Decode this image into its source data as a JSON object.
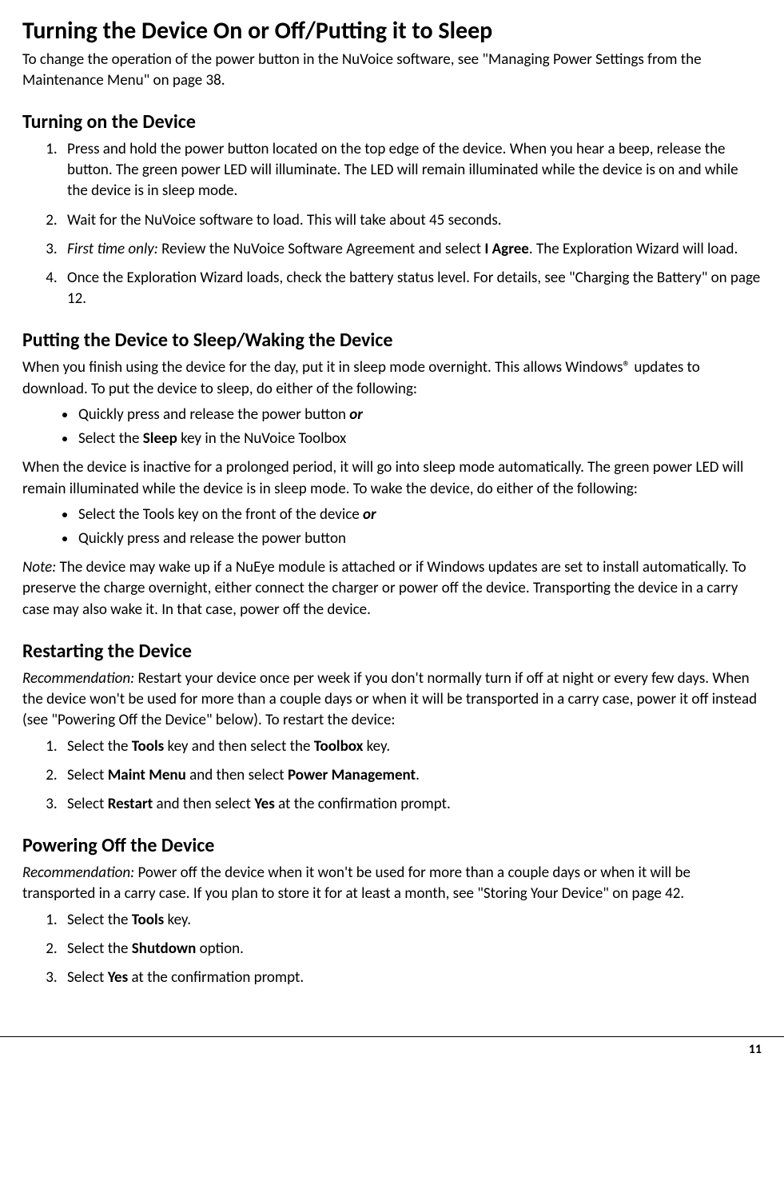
{
  "title": "Turning the Device On or Off/Putting it to Sleep",
  "intro": "To change the operation of the power button in the NuVoice software, see \"Managing Power Settings from the Maintenance Menu\" on page 38.",
  "s1": {
    "heading": "Turning on the Device",
    "li1": "Press and hold the power button located on the top edge of the device. When you hear a beep, release the button. The green power LED will illuminate. The LED will remain illuminated while the device is on and while the device is in sleep mode.",
    "li2": "Wait for the NuVoice software to load. This will take about 45 seconds.",
    "li3_a": "First time only:",
    "li3_b": " Review the NuVoice Software Agreement and select ",
    "li3_c": "I Agree",
    "li3_d": ". The Exploration Wizard will load.",
    "li4": "Once the Exploration Wizard loads, check the battery status level. For details, see \"Charging the Battery\" on page 12."
  },
  "s2": {
    "heading": "Putting the Device to Sleep/Waking the Device",
    "p1": "When you finish using the device for the day, put it in sleep mode overnight. This allows Windows® updates to download. To put the device to sleep, do either of the following:",
    "b1_a": "Quickly press and release the power button ",
    "b1_b": "or",
    "b2_a": "Select the ",
    "b2_b": "Sleep",
    "b2_c": " key in the NuVoice Toolbox",
    "p2": "When the device is inactive for a prolonged period, it will go into sleep mode automatically. The green power LED will remain illuminated while the device is in sleep mode. To wake the device, do either of the following:",
    "b3_a": "Select the Tools key on the front of the device ",
    "b3_b": "or",
    "b4": "Quickly press and release the power button",
    "note_a": "Note:",
    "note_b": " The device may wake up if a NuEye module is attached or if Windows updates are set to install automatically. To preserve the charge overnight, either connect the charger or power off the device. Transporting the device in a carry case may also wake it. In that case, power off the device."
  },
  "s3": {
    "heading": "Restarting the Device",
    "rec_a": "Recommendation:",
    "rec_b": " Restart your device once per week if you don't normally turn if off at night or every few days. When the device won't be used for more than a couple days or when it will be transported in a carry case, power it off instead (see \"Powering Off the Device\" below). To restart the device:",
    "li1_a": "Select the ",
    "li1_b": "Tools",
    "li1_c": " key and then select the ",
    "li1_d": "Toolbox",
    "li1_e": " key.",
    "li2_a": "Select ",
    "li2_b": "Maint Menu",
    "li2_c": " and then select ",
    "li2_d": "Power Management",
    "li2_e": ".",
    "li3_a": "Select ",
    "li3_b": "Restart",
    "li3_c": " and then select ",
    "li3_d": "Yes",
    "li3_e": " at the confirmation prompt."
  },
  "s4": {
    "heading": "Powering Off the Device",
    "rec_a": "Recommendation:",
    "rec_b": " Power off the device when it won't be used for more than a couple days or when it will be transported in a carry case. If you plan to store it for at least a month, see \"Storing Your Device\" on page 42.",
    "li1_a": "Select the ",
    "li1_b": "Tools",
    "li1_c": " key.",
    "li2_a": "Select the ",
    "li2_b": "Shutdown",
    "li2_c": " option.",
    "li3_a": "Select ",
    "li3_b": "Yes",
    "li3_c": " at the confirmation prompt."
  },
  "page_number": "11"
}
